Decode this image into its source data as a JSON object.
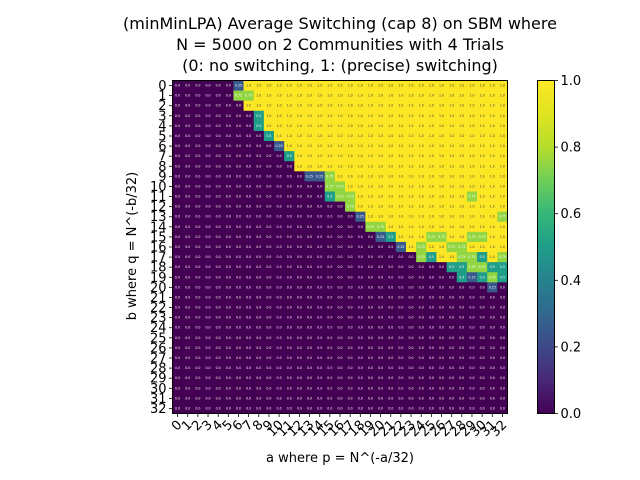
{
  "chart_data": {
    "type": "heatmap",
    "title_lines": [
      "(minMinLPA) Average Switching (cap 8) on SBM where",
      "N = 5000 on 2 Communities with 4 Trials",
      "(0: no switching, 1: (precise) switching)"
    ],
    "xlabel": "a where p = N^(-a/32)",
    "ylabel": "b where q = N^(-b/32)",
    "x_ticks": [
      "0",
      "1",
      "2",
      "3",
      "4",
      "5",
      "6",
      "7",
      "8",
      "9",
      "10",
      "11",
      "12",
      "13",
      "14",
      "15",
      "16",
      "17",
      "18",
      "19",
      "20",
      "21",
      "22",
      "23",
      "24",
      "25",
      "26",
      "27",
      "28",
      "29",
      "30",
      "31",
      "32"
    ],
    "y_ticks": [
      "0",
      "1",
      "2",
      "3",
      "4",
      "5",
      "6",
      "7",
      "8",
      "9",
      "10",
      "11",
      "12",
      "13",
      "14",
      "15",
      "16",
      "17",
      "18",
      "19",
      "20",
      "21",
      "22",
      "23",
      "24",
      "25",
      "26",
      "27",
      "28",
      "29",
      "30",
      "31",
      "32"
    ],
    "colorbar": {
      "colormap": "viridis",
      "range": [
        0.0,
        1.0
      ],
      "ticks": [
        "0.0",
        "0.2",
        "0.4",
        "0.6",
        "0.8",
        "1.0"
      ]
    },
    "values": [
      [
        0,
        0,
        0,
        0,
        0,
        0,
        0.25,
        1,
        1,
        1,
        1,
        1,
        1,
        1,
        1,
        1,
        1,
        1,
        1,
        1,
        1,
        1,
        1,
        1,
        1,
        1,
        1,
        1,
        1,
        1,
        1,
        1,
        1
      ],
      [
        0,
        0,
        0,
        0,
        0,
        0,
        0.75,
        0.75,
        1,
        1,
        1,
        1,
        1,
        1,
        1,
        1,
        1,
        1,
        1,
        1,
        1,
        1,
        1,
        1,
        1,
        1,
        1,
        1,
        1,
        1,
        1,
        1,
        1
      ],
      [
        0,
        0,
        0,
        0,
        0,
        0,
        0,
        1,
        1,
        1,
        1,
        1,
        1,
        1,
        1,
        1,
        1,
        1,
        1,
        1,
        1,
        1,
        1,
        1,
        1,
        1,
        1,
        1,
        1,
        1,
        1,
        1,
        1
      ],
      [
        0,
        0,
        0,
        0,
        0,
        0,
        0,
        0,
        0.5,
        1,
        1,
        1,
        1,
        1,
        1,
        1,
        1,
        1,
        1,
        1,
        1,
        1,
        1,
        1,
        1,
        1,
        1,
        1,
        1,
        1,
        1,
        1,
        1
      ],
      [
        0,
        0,
        0,
        0,
        0,
        0,
        0,
        0,
        0.5,
        1,
        1,
        1,
        1,
        1,
        1,
        1,
        1,
        1,
        1,
        1,
        1,
        1,
        1,
        1,
        1,
        1,
        1,
        1,
        1,
        1,
        1,
        1,
        1
      ],
      [
        0,
        0,
        0,
        0,
        0,
        0,
        0,
        0,
        0,
        0.5,
        1,
        1,
        1,
        1,
        1,
        1,
        1,
        1,
        1,
        1,
        1,
        1,
        1,
        1,
        1,
        1,
        1,
        1,
        1,
        1,
        1,
        1,
        1
      ],
      [
        0,
        0,
        0,
        0,
        0,
        0,
        0,
        0,
        0,
        0,
        0.25,
        1,
        1,
        1,
        1,
        1,
        1,
        1,
        1,
        1,
        1,
        1,
        1,
        1,
        1,
        1,
        1,
        1,
        1,
        1,
        1,
        1,
        1
      ],
      [
        0,
        0,
        0,
        0,
        0,
        0,
        0,
        0,
        0,
        0,
        0,
        0.5,
        1,
        1,
        1,
        1,
        1,
        1,
        1,
        1,
        1,
        1,
        1,
        1,
        1,
        1,
        1,
        1,
        1,
        1,
        1,
        1,
        1
      ],
      [
        0,
        0,
        0,
        0,
        0,
        0,
        0,
        0,
        0,
        0,
        0,
        0,
        1,
        1,
        1,
        1,
        1,
        1,
        1,
        1,
        1,
        1,
        1,
        1,
        1,
        1,
        1,
        1,
        1,
        1,
        1,
        1,
        1
      ],
      [
        0,
        0,
        0,
        0,
        0,
        0,
        0,
        0,
        0,
        0,
        0,
        0,
        0,
        0.25,
        0.25,
        0.75,
        1,
        1,
        1,
        1,
        1,
        1,
        1,
        1,
        1,
        1,
        1,
        1,
        1,
        1,
        1,
        1,
        1
      ],
      [
        0,
        0,
        0,
        0,
        0,
        0,
        0,
        0,
        0,
        0,
        0,
        0,
        0,
        0,
        0,
        0.75,
        0.75,
        1,
        1,
        1,
        1,
        1,
        1,
        1,
        1,
        1,
        1,
        1,
        1,
        1,
        1,
        1,
        1
      ],
      [
        0,
        0,
        0,
        0,
        0,
        0,
        0,
        0,
        0,
        0,
        0,
        0,
        0,
        0,
        0,
        0.5,
        0.75,
        0.75,
        1,
        1,
        1,
        1,
        1,
        1,
        1,
        1,
        1,
        1,
        1,
        0.75,
        1,
        1,
        1
      ],
      [
        0,
        0,
        0,
        0,
        0,
        0,
        0,
        0,
        0,
        0,
        0,
        0,
        0,
        0,
        0,
        0,
        0,
        0.75,
        1,
        1,
        1,
        1,
        1,
        1,
        1,
        1,
        1,
        1,
        1,
        1,
        1,
        1,
        1
      ],
      [
        0,
        0,
        0,
        0,
        0,
        0,
        0,
        0,
        0,
        0,
        0,
        0,
        0,
        0,
        0,
        0,
        0,
        0,
        0.25,
        1,
        1,
        1,
        1,
        1,
        1,
        1,
        1,
        1,
        1,
        1,
        1,
        1,
        0.75
      ],
      [
        0,
        0,
        0,
        0,
        0,
        0,
        0,
        0,
        0,
        0,
        0,
        0,
        0,
        0,
        0,
        0,
        0,
        0,
        0,
        0.75,
        0.75,
        1,
        1,
        1,
        1,
        1,
        1,
        1,
        1,
        1,
        1,
        1,
        1
      ],
      [
        0,
        0,
        0,
        0,
        0,
        0,
        0,
        0,
        0,
        0,
        0,
        0,
        0,
        0,
        0,
        0,
        0,
        0,
        0,
        0,
        0.25,
        0.5,
        1,
        1,
        1,
        0.75,
        0.75,
        1,
        1,
        0.75,
        0.75,
        1,
        1
      ],
      [
        0,
        0,
        0,
        0,
        0,
        0,
        0,
        0,
        0,
        0,
        0,
        0,
        0,
        0,
        0,
        0,
        0,
        0,
        0,
        0,
        0,
        0,
        0.25,
        1,
        0.75,
        1,
        1,
        0.75,
        0.75,
        1,
        1,
        1,
        1
      ],
      [
        0,
        0,
        0,
        0,
        0,
        0,
        0,
        0,
        0,
        0,
        0,
        0,
        0,
        0,
        0,
        0,
        0,
        0,
        0,
        0,
        0,
        0,
        0,
        0,
        0.75,
        0.5,
        1,
        1,
        0.75,
        0.75,
        0.5,
        1,
        0.75
      ],
      [
        0,
        0,
        0,
        0,
        0,
        0,
        0,
        0,
        0,
        0,
        0,
        0,
        0,
        0,
        0,
        0,
        0,
        0,
        0,
        0,
        0,
        0,
        0,
        0,
        0,
        0,
        0,
        0.5,
        0.5,
        0.75,
        0.75,
        0.5,
        0.5
      ],
      [
        0,
        0,
        0,
        0,
        0,
        0,
        0,
        0,
        0,
        0,
        0,
        0,
        0,
        0,
        0,
        0,
        0,
        0,
        0,
        0,
        0,
        0,
        0,
        0,
        0,
        0,
        0,
        0,
        0.5,
        0.25,
        0.5,
        0.75,
        0.5
      ],
      [
        0,
        0,
        0,
        0,
        0,
        0,
        0,
        0,
        0,
        0,
        0,
        0,
        0,
        0,
        0,
        0,
        0,
        0,
        0,
        0,
        0,
        0,
        0,
        0,
        0,
        0,
        0,
        0,
        0,
        0,
        0,
        0.25,
        0
      ],
      [
        0,
        0,
        0,
        0,
        0,
        0,
        0,
        0,
        0,
        0,
        0,
        0,
        0,
        0,
        0,
        0,
        0,
        0,
        0,
        0,
        0,
        0,
        0,
        0,
        0,
        0,
        0,
        0,
        0,
        0,
        0,
        0,
        0
      ],
      [
        0,
        0,
        0,
        0,
        0,
        0,
        0,
        0,
        0,
        0,
        0,
        0,
        0,
        0,
        0,
        0,
        0,
        0,
        0,
        0,
        0,
        0,
        0,
        0,
        0,
        0,
        0,
        0,
        0,
        0,
        0,
        0,
        0
      ],
      [
        0,
        0,
        0,
        0,
        0,
        0,
        0,
        0,
        0,
        0,
        0,
        0,
        0,
        0,
        0,
        0,
        0,
        0,
        0,
        0,
        0,
        0,
        0,
        0,
        0,
        0,
        0,
        0,
        0,
        0,
        0,
        0,
        0
      ],
      [
        0,
        0,
        0,
        0,
        0,
        0,
        0,
        0,
        0,
        0,
        0,
        0,
        0,
        0,
        0,
        0,
        0,
        0,
        0,
        0,
        0,
        0,
        0,
        0,
        0,
        0,
        0,
        0,
        0,
        0,
        0,
        0,
        0
      ],
      [
        0,
        0,
        0,
        0,
        0,
        0,
        0,
        0,
        0,
        0,
        0,
        0,
        0,
        0,
        0,
        0,
        0,
        0,
        0,
        0,
        0,
        0,
        0,
        0,
        0,
        0,
        0,
        0,
        0,
        0,
        0,
        0,
        0
      ],
      [
        0,
        0,
        0,
        0,
        0,
        0,
        0,
        0,
        0,
        0,
        0,
        0,
        0,
        0,
        0,
        0,
        0,
        0,
        0,
        0,
        0,
        0,
        0,
        0,
        0,
        0,
        0,
        0,
        0,
        0,
        0,
        0,
        0
      ],
      [
        0,
        0,
        0,
        0,
        0,
        0,
        0,
        0,
        0,
        0,
        0,
        0,
        0,
        0,
        0,
        0,
        0,
        0,
        0,
        0,
        0,
        0,
        0,
        0,
        0,
        0,
        0,
        0,
        0,
        0,
        0,
        0,
        0
      ],
      [
        0,
        0,
        0,
        0,
        0,
        0,
        0,
        0,
        0,
        0,
        0,
        0,
        0,
        0,
        0,
        0,
        0,
        0,
        0,
        0,
        0,
        0,
        0,
        0,
        0,
        0,
        0,
        0,
        0,
        0,
        0,
        0,
        0
      ],
      [
        0,
        0,
        0,
        0,
        0,
        0,
        0,
        0,
        0,
        0,
        0,
        0,
        0,
        0,
        0,
        0,
        0,
        0,
        0,
        0,
        0,
        0,
        0,
        0,
        0,
        0,
        0,
        0,
        0,
        0,
        0,
        0,
        0
      ],
      [
        0,
        0,
        0,
        0,
        0,
        0,
        0,
        0,
        0,
        0,
        0,
        0,
        0,
        0,
        0,
        0,
        0,
        0,
        0,
        0,
        0,
        0,
        0,
        0,
        0,
        0,
        0,
        0,
        0,
        0,
        0,
        0,
        0
      ],
      [
        0,
        0,
        0,
        0,
        0,
        0,
        0,
        0,
        0,
        0,
        0,
        0,
        0,
        0,
        0,
        0,
        0,
        0,
        0,
        0,
        0,
        0,
        0,
        0,
        0,
        0,
        0,
        0,
        0,
        0,
        0,
        0,
        0
      ],
      [
        0,
        0,
        0,
        0,
        0,
        0,
        0,
        0,
        0,
        0,
        0,
        0,
        0,
        0,
        0,
        0,
        0,
        0,
        0,
        0,
        0,
        0,
        0,
        0,
        0,
        0,
        0,
        0,
        0,
        0,
        0,
        0,
        0
      ]
    ]
  }
}
